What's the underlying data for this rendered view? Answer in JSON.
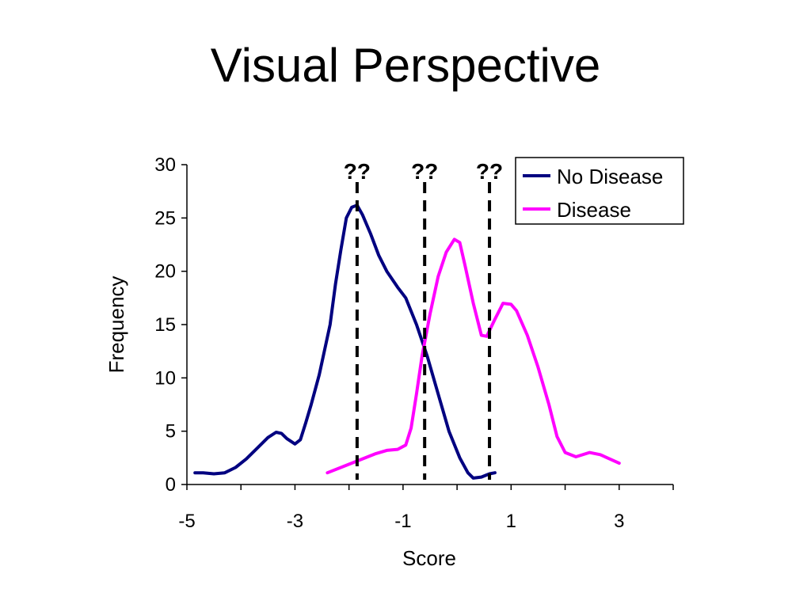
{
  "page": {
    "title": "Visual Perspective"
  },
  "colors": {
    "no_disease": "#000080",
    "disease": "#ff00ff",
    "threshold": "#000000"
  },
  "chart_data": {
    "type": "line",
    "xlabel": "Score",
    "ylabel": "Frequency",
    "xlim": [
      -5,
      4
    ],
    "ylim": [
      0,
      30
    ],
    "xticks": [
      -5,
      -3,
      -1,
      1,
      3
    ],
    "yticks": [
      0,
      5,
      10,
      15,
      20,
      25,
      30
    ],
    "grid": false,
    "legend_position": "top-right",
    "series": [
      {
        "name": "No Disease",
        "color": "#000080",
        "points": [
          [
            -4.85,
            1.1
          ],
          [
            -4.7,
            1.1
          ],
          [
            -4.5,
            1.0
          ],
          [
            -4.3,
            1.1
          ],
          [
            -4.1,
            1.6
          ],
          [
            -3.9,
            2.4
          ],
          [
            -3.7,
            3.4
          ],
          [
            -3.5,
            4.4
          ],
          [
            -3.35,
            4.9
          ],
          [
            -3.25,
            4.8
          ],
          [
            -3.15,
            4.3
          ],
          [
            -3.0,
            3.8
          ],
          [
            -2.9,
            4.2
          ],
          [
            -2.8,
            5.8
          ],
          [
            -2.7,
            7.5
          ],
          [
            -2.55,
            10.3
          ],
          [
            -2.35,
            15.0
          ],
          [
            -2.25,
            18.8
          ],
          [
            -2.15,
            22.0
          ],
          [
            -2.05,
            25.0
          ],
          [
            -1.95,
            26.0
          ],
          [
            -1.85,
            26.2
          ],
          [
            -1.75,
            25.3
          ],
          [
            -1.6,
            23.5
          ],
          [
            -1.45,
            21.5
          ],
          [
            -1.3,
            20.0
          ],
          [
            -1.1,
            18.5
          ],
          [
            -0.95,
            17.5
          ],
          [
            -0.75,
            15.0
          ],
          [
            -0.55,
            12.0
          ],
          [
            -0.35,
            8.5
          ],
          [
            -0.15,
            5.0
          ],
          [
            0.05,
            2.5
          ],
          [
            0.2,
            1.1
          ],
          [
            0.3,
            0.6
          ],
          [
            0.45,
            0.7
          ],
          [
            0.6,
            1.0
          ],
          [
            0.7,
            1.1
          ]
        ]
      },
      {
        "name": "Disease",
        "color": "#ff00ff",
        "points": [
          [
            -2.4,
            1.1
          ],
          [
            -2.1,
            1.7
          ],
          [
            -1.8,
            2.3
          ],
          [
            -1.5,
            2.9
          ],
          [
            -1.3,
            3.2
          ],
          [
            -1.1,
            3.3
          ],
          [
            -0.95,
            3.7
          ],
          [
            -0.85,
            5.3
          ],
          [
            -0.75,
            8.5
          ],
          [
            -0.65,
            12.0
          ],
          [
            -0.5,
            16.0
          ],
          [
            -0.35,
            19.5
          ],
          [
            -0.2,
            21.8
          ],
          [
            -0.05,
            23.0
          ],
          [
            0.05,
            22.7
          ],
          [
            0.15,
            20.5
          ],
          [
            0.3,
            17.0
          ],
          [
            0.45,
            14.0
          ],
          [
            0.55,
            13.9
          ],
          [
            0.7,
            15.5
          ],
          [
            0.85,
            17.0
          ],
          [
            1.0,
            16.9
          ],
          [
            1.1,
            16.3
          ],
          [
            1.3,
            14.0
          ],
          [
            1.5,
            11.0
          ],
          [
            1.7,
            7.5
          ],
          [
            1.85,
            4.5
          ],
          [
            2.0,
            3.0
          ],
          [
            2.2,
            2.6
          ],
          [
            2.45,
            3.0
          ],
          [
            2.65,
            2.8
          ],
          [
            3.0,
            2.0
          ]
        ]
      }
    ],
    "thresholds": [
      {
        "x": -1.85,
        "label": "??"
      },
      {
        "x": -0.6,
        "label": "??"
      },
      {
        "x": 0.6,
        "label": "??"
      }
    ]
  }
}
